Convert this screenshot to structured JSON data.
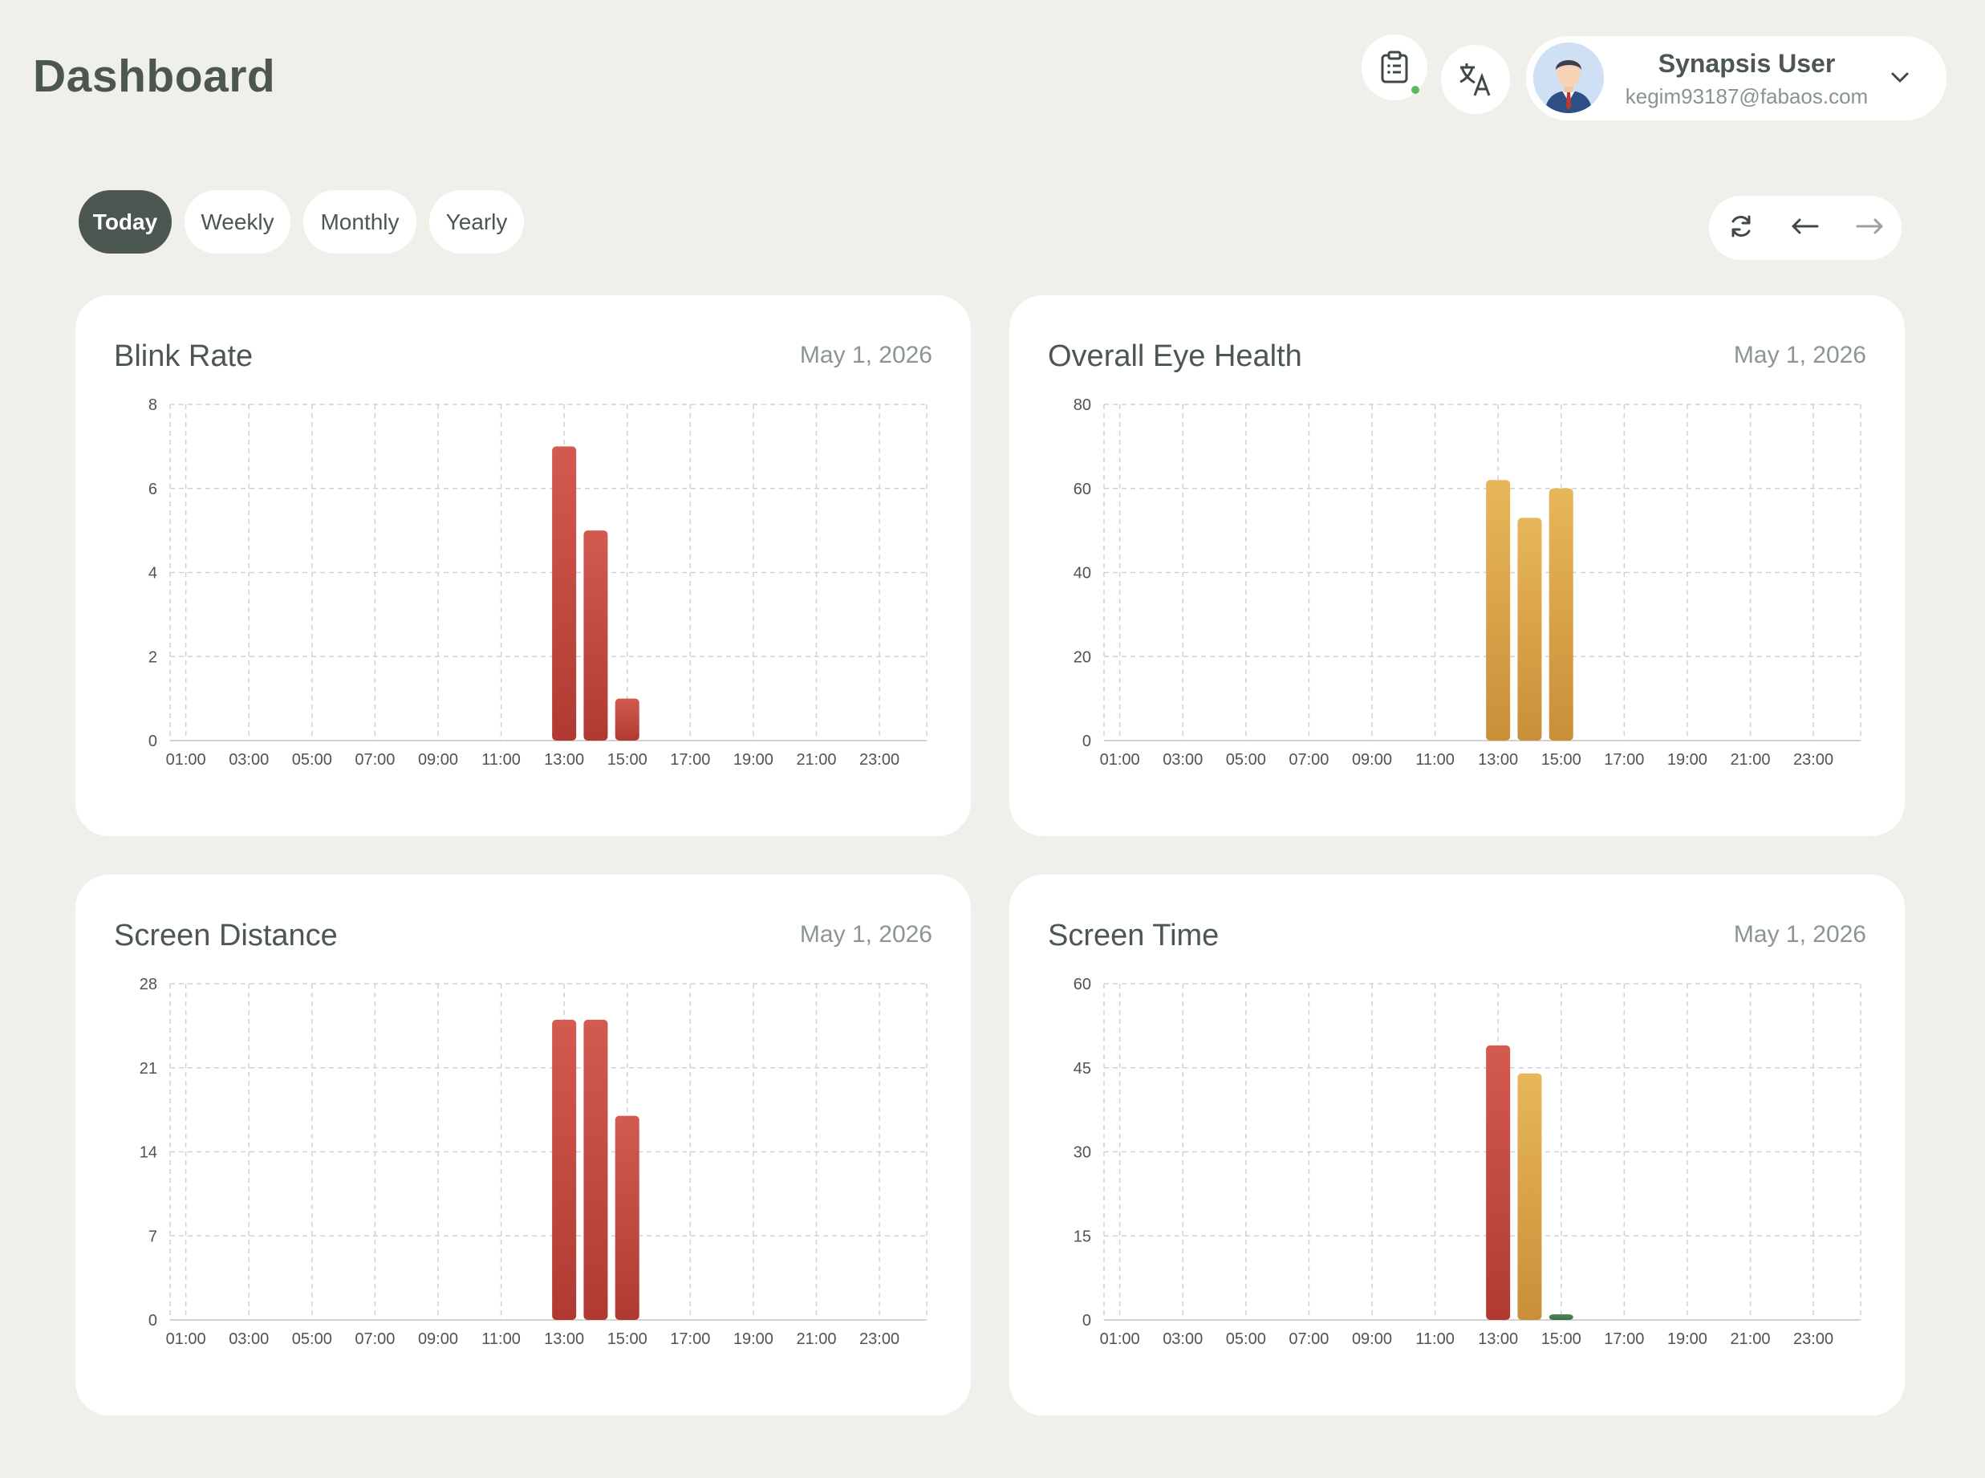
{
  "header": {
    "title": "Dashboard",
    "user": {
      "name": "Synapsis User",
      "email": "kegim93187@fabaos.com"
    }
  },
  "icons": {
    "clipboard": "clipboard-icon",
    "translate": "translate-icon",
    "chevron": "chevron-down-icon",
    "refresh": "refresh-icon",
    "prev": "arrow-left-icon",
    "next": "arrow-right-icon"
  },
  "tabs": [
    {
      "label": "Today",
      "active": true
    },
    {
      "label": "Weekly",
      "active": false
    },
    {
      "label": "Monthly",
      "active": false
    },
    {
      "label": "Yearly",
      "active": false
    }
  ],
  "colors": {
    "red": "#c24a40",
    "amber": "#d8a24a",
    "green": "#4a7a52",
    "text": "#4b5750",
    "background": "#f0f0eb"
  },
  "cards": [
    {
      "title": "Blink Rate",
      "date": "May 1, 2026"
    },
    {
      "title": "Overall Eye Health",
      "date": "May 1, 2026"
    },
    {
      "title": "Screen Distance",
      "date": "May 1, 2026"
    },
    {
      "title": "Screen Time",
      "date": "May 1, 2026"
    }
  ],
  "chart_data": [
    {
      "type": "bar",
      "title": "Blink Rate",
      "x_tick_labels": [
        "01:00",
        "03:00",
        "05:00",
        "07:00",
        "09:00",
        "11:00",
        "13:00",
        "15:00",
        "17:00",
        "19:00",
        "21:00",
        "23:00"
      ],
      "y_ticks": [
        0,
        2,
        4,
        6,
        8
      ],
      "ylim": [
        0,
        8
      ],
      "grid": true,
      "points": [
        {
          "x": "13:00",
          "y": 7.0,
          "color": "red"
        },
        {
          "x": "14:00",
          "y": 5.0,
          "color": "red"
        },
        {
          "x": "15:00",
          "y": 1.0,
          "color": "red"
        }
      ]
    },
    {
      "type": "bar",
      "title": "Overall Eye Health",
      "x_tick_labels": [
        "01:00",
        "03:00",
        "05:00",
        "07:00",
        "09:00",
        "11:00",
        "13:00",
        "15:00",
        "17:00",
        "19:00",
        "21:00",
        "23:00"
      ],
      "y_ticks": [
        0,
        20,
        40,
        60,
        80
      ],
      "ylim": [
        0,
        80
      ],
      "grid": true,
      "points": [
        {
          "x": "13:00",
          "y": 62,
          "color": "amber"
        },
        {
          "x": "14:00",
          "y": 53,
          "color": "amber"
        },
        {
          "x": "15:00",
          "y": 60,
          "color": "amber"
        }
      ]
    },
    {
      "type": "bar",
      "title": "Screen Distance",
      "x_tick_labels": [
        "01:00",
        "03:00",
        "05:00",
        "07:00",
        "09:00",
        "11:00",
        "13:00",
        "15:00",
        "17:00",
        "19:00",
        "21:00",
        "23:00"
      ],
      "y_ticks": [
        0,
        7,
        14,
        21,
        28
      ],
      "ylim": [
        0,
        28
      ],
      "grid": true,
      "points": [
        {
          "x": "13:00",
          "y": 25,
          "color": "red"
        },
        {
          "x": "14:00",
          "y": 25,
          "color": "red"
        },
        {
          "x": "15:00",
          "y": 17,
          "color": "red"
        }
      ]
    },
    {
      "type": "bar",
      "title": "Screen Time",
      "x_tick_labels": [
        "01:00",
        "03:00",
        "05:00",
        "07:00",
        "09:00",
        "11:00",
        "13:00",
        "15:00",
        "17:00",
        "19:00",
        "21:00",
        "23:00"
      ],
      "y_ticks": [
        0,
        15,
        30,
        45,
        60
      ],
      "ylim": [
        0,
        60
      ],
      "grid": true,
      "points": [
        {
          "x": "13:00",
          "y": 49,
          "color": "red"
        },
        {
          "x": "14:00",
          "y": 44,
          "color": "amber"
        },
        {
          "x": "15:00",
          "y": 1,
          "color": "green"
        }
      ]
    }
  ]
}
